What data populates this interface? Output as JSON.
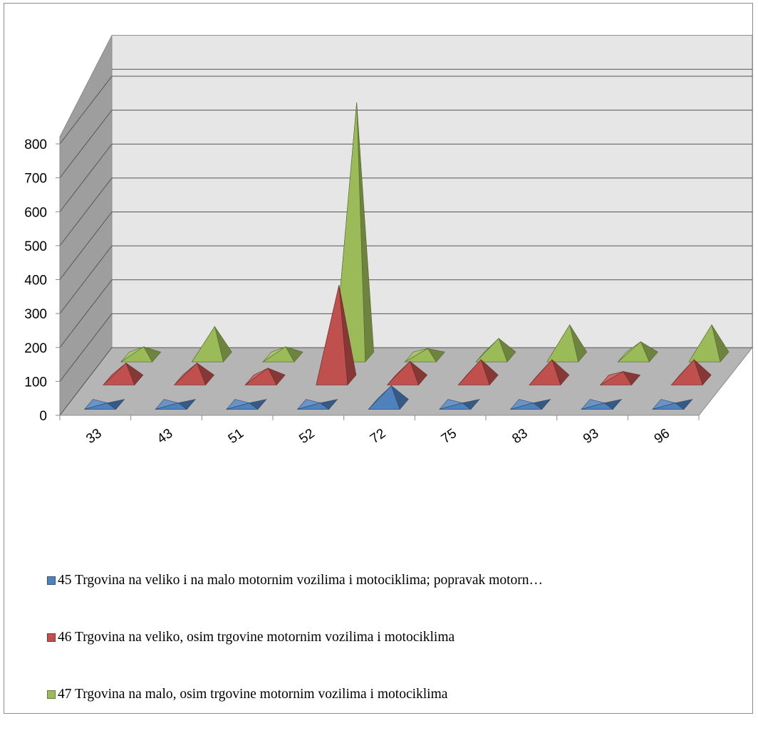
{
  "chart_data": {
    "type": "bar",
    "style": "3d-pyramid",
    "categories": [
      "33",
      "43",
      "51",
      "52",
      "72",
      "75",
      "83",
      "93",
      "96"
    ],
    "series": [
      {
        "name": "45 Trgovina na veliko i na malo motornim vozilima i motociklima; popravak motorn…",
        "color": "#4f81bd",
        "values": [
          0,
          0,
          0,
          0,
          55,
          0,
          0,
          0,
          0
        ]
      },
      {
        "name": "46 Trgovina na veliko, osim trgovine motornim vozilima i motociklima",
        "color": "#c0504d",
        "values": [
          50,
          50,
          35,
          280,
          55,
          60,
          60,
          25,
          60
        ]
      },
      {
        "name": "47 Trgovina na malo, osim trgovine motornim vozilima i motociklima",
        "color": "#9bbb59",
        "values": [
          30,
          90,
          30,
          750,
          25,
          55,
          95,
          45,
          95
        ]
      }
    ],
    "yticks": [
      "0",
      "100",
      "200",
      "300",
      "400",
      "500",
      "600",
      "700",
      "800"
    ],
    "ylim": [
      0,
      800
    ],
    "grid": true,
    "legend": "bottom"
  }
}
